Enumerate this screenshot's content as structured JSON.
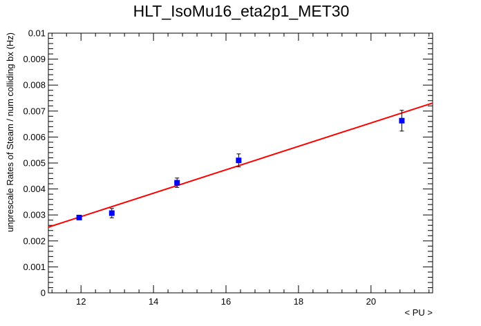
{
  "chart_data": {
    "type": "scatter",
    "title": "HLT_IsoMu16_eta2p1_MET30",
    "xlabel": "< PU >",
    "ylabel": "unprescale Rates of Steam / num colliding bx (Hz)",
    "xlim": [
      11.1,
      21.7
    ],
    "ylim": [
      0,
      0.01
    ],
    "x_ticks": [
      "12",
      "14",
      "16",
      "18",
      "20"
    ],
    "y_ticks": [
      "0",
      "0.001",
      "0.002",
      "0.003",
      "0.004",
      "0.005",
      "0.006",
      "0.007",
      "0.008",
      "0.009",
      "0.01"
    ],
    "grid": false,
    "series": [
      {
        "type": "scatter",
        "color": "#0000ff",
        "points": [
          {
            "x": 11.95,
            "y": 0.0029,
            "err": 7e-05
          },
          {
            "x": 12.85,
            "y": 0.00307,
            "err": 0.00018
          },
          {
            "x": 14.65,
            "y": 0.00424,
            "err": 0.00018
          },
          {
            "x": 16.35,
            "y": 0.0051,
            "err": 0.00025
          },
          {
            "x": 20.85,
            "y": 0.00663,
            "err": 0.0004
          }
        ]
      },
      {
        "type": "line",
        "color": "#ff0000",
        "x": [
          11.1,
          21.7
        ],
        "y": [
          0.00253,
          0.00731
        ]
      }
    ]
  }
}
